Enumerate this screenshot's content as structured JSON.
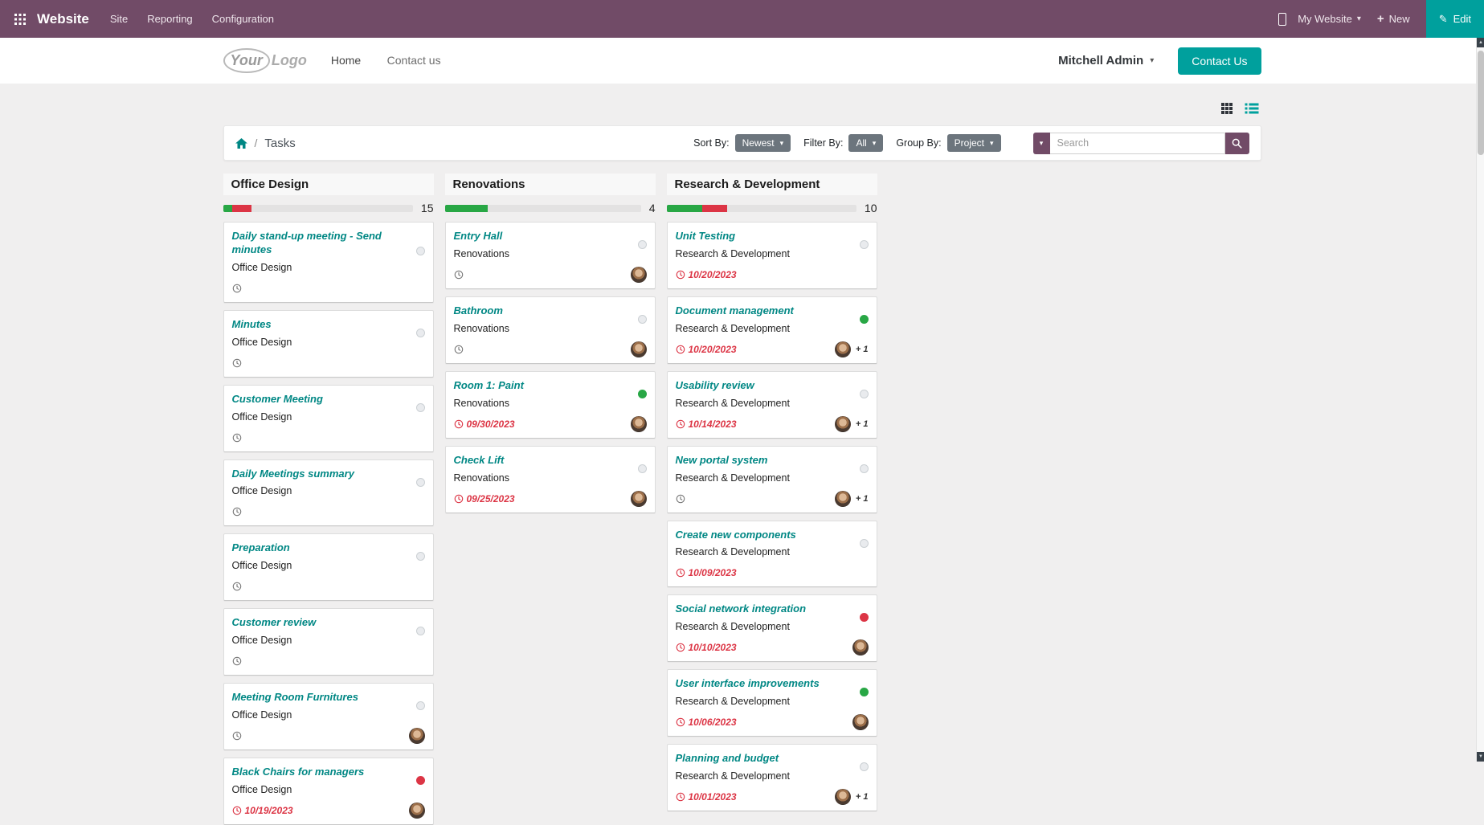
{
  "colors": {
    "nav_purple": "#714B67",
    "accent_teal": "#00A09D",
    "link_teal": "#008784",
    "status_green": "#28a745",
    "status_red": "#dc3545",
    "secondary_gray": "#6c757d",
    "search_purple": "#714B67"
  },
  "icons": {
    "caret_down": "▾",
    "pencil": "✎",
    "plus": "+",
    "slash": "/",
    "scroll_up": "▲",
    "scroll_down": "▼"
  },
  "top_nav": {
    "app_name": "Website",
    "menus": [
      "Site",
      "Reporting",
      "Configuration"
    ],
    "my_website": "My Website",
    "new_label": "New",
    "edit_label": "Edit"
  },
  "site_header": {
    "logo": {
      "part1": "Your",
      "part2": "Logo"
    },
    "nav": [
      "Home",
      "Contact us"
    ],
    "user_name": "Mitchell Admin",
    "contact_button": "Contact Us"
  },
  "toolbar": {
    "breadcrumb_current": "Tasks",
    "sort_by_label": "Sort By:",
    "sort_by_value": "Newest",
    "filter_by_label": "Filter By:",
    "filter_by_value": "All",
    "group_by_label": "Group By:",
    "group_by_value": "Project",
    "search_placeholder": "Search"
  },
  "board": {
    "columns": [
      {
        "name": "Office Design",
        "count": "15",
        "progress": {
          "green": 5,
          "red": 10
        },
        "cards": [
          {
            "title": "Daily stand-up meeting - Send minutes",
            "project": "Office Design",
            "status": "muted",
            "date": "",
            "avatar": false,
            "extra": ""
          },
          {
            "title": "Minutes",
            "project": "Office Design",
            "status": "muted",
            "date": "",
            "avatar": false,
            "extra": ""
          },
          {
            "title": "Customer Meeting",
            "project": "Office Design",
            "status": "muted",
            "date": "",
            "avatar": false,
            "extra": ""
          },
          {
            "title": "Daily Meetings summary",
            "project": "Office Design",
            "status": "muted",
            "date": "",
            "avatar": false,
            "extra": ""
          },
          {
            "title": "Preparation",
            "project": "Office Design",
            "status": "muted",
            "date": "",
            "avatar": false,
            "extra": ""
          },
          {
            "title": "Customer review",
            "project": "Office Design",
            "status": "muted",
            "date": "",
            "avatar": false,
            "extra": ""
          },
          {
            "title": "Meeting Room Furnitures",
            "project": "Office Design",
            "status": "muted",
            "date": "",
            "avatar": true,
            "extra": ""
          },
          {
            "title": "Black Chairs for managers",
            "project": "Office Design",
            "status": "red",
            "date": "10/19/2023",
            "avatar": true,
            "extra": ""
          }
        ]
      },
      {
        "name": "Renovations",
        "count": "4",
        "progress": {
          "green": 22,
          "red": 0
        },
        "cards": [
          {
            "title": "Entry Hall",
            "project": "Renovations",
            "status": "muted",
            "date": "",
            "avatar": true,
            "extra": ""
          },
          {
            "title": "Bathroom",
            "project": "Renovations",
            "status": "muted",
            "date": "",
            "avatar": true,
            "extra": ""
          },
          {
            "title": "Room 1: Paint",
            "project": "Renovations",
            "status": "green",
            "date": "09/30/2023",
            "avatar": true,
            "extra": ""
          },
          {
            "title": "Check Lift",
            "project": "Renovations",
            "status": "muted",
            "date": "09/25/2023",
            "avatar": true,
            "extra": ""
          }
        ]
      },
      {
        "name": "Research & Development",
        "count": "10",
        "progress": {
          "green": 19,
          "red": 13
        },
        "cards": [
          {
            "title": "Unit Testing",
            "project": "Research & Development",
            "status": "muted",
            "date": "10/20/2023",
            "avatar": false,
            "extra": ""
          },
          {
            "title": "Document management",
            "project": "Research & Development",
            "status": "green",
            "date": "10/20/2023",
            "avatar": true,
            "extra": "+ 1"
          },
          {
            "title": "Usability review",
            "project": "Research & Development",
            "status": "muted",
            "date": "10/14/2023",
            "avatar": true,
            "extra": "+ 1"
          },
          {
            "title": "New portal system",
            "project": "Research & Development",
            "status": "muted",
            "date": "",
            "avatar": true,
            "extra": "+ 1"
          },
          {
            "title": "Create new components",
            "project": "Research & Development",
            "status": "muted",
            "date": "10/09/2023",
            "avatar": false,
            "extra": ""
          },
          {
            "title": "Social network integration",
            "project": "Research & Development",
            "status": "red",
            "date": "10/10/2023",
            "avatar": true,
            "extra": ""
          },
          {
            "title": "User interface improvements",
            "project": "Research & Development",
            "status": "green",
            "date": "10/06/2023",
            "avatar": true,
            "extra": ""
          },
          {
            "title": "Planning and budget",
            "project": "Research & Development",
            "status": "muted",
            "date": "10/01/2023",
            "avatar": true,
            "extra": "+ 1"
          }
        ]
      }
    ]
  }
}
